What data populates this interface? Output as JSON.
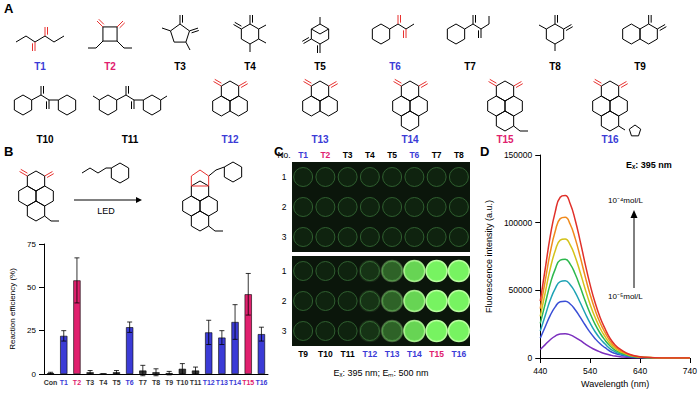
{
  "panel_labels": [
    "A",
    "B",
    "C",
    "D"
  ],
  "structures": [
    {
      "label": "T1",
      "color": "#3b3bd6"
    },
    {
      "label": "T2",
      "color": "#e0206e"
    },
    {
      "label": "T3",
      "color": "#000000"
    },
    {
      "label": "T4",
      "color": "#000000"
    },
    {
      "label": "T5",
      "color": "#000000"
    },
    {
      "label": "T6",
      "color": "#3b3bd6"
    },
    {
      "label": "T7",
      "color": "#000000"
    },
    {
      "label": "T8",
      "color": "#000000"
    },
    {
      "label": "T9",
      "color": "#000000"
    },
    {
      "label": "T10",
      "color": "#000000"
    },
    {
      "label": "T11",
      "color": "#000000"
    },
    {
      "label": "T12",
      "color": "#3b3bd6"
    },
    {
      "label": "T13",
      "color": "#3b3bd6"
    },
    {
      "label": "T14",
      "color": "#3b3bd6"
    },
    {
      "label": "T15",
      "color": "#e0206e"
    },
    {
      "label": "T16",
      "color": "#3b3bd6"
    }
  ],
  "scheme": {
    "arrow_label": "LED"
  },
  "chart_data": [
    {
      "type": "bar",
      "categories": [
        "Con",
        "T1",
        "T2",
        "T3",
        "T4",
        "T5",
        "T6",
        "T7",
        "T8",
        "T9",
        "T10",
        "T11",
        "T12",
        "T13",
        "T14",
        "T15",
        "T16"
      ],
      "values": [
        0.5,
        22,
        54,
        1,
        0,
        1,
        27,
        2,
        1,
        0.5,
        3,
        2,
        24,
        21,
        30,
        46,
        23
      ],
      "errors": [
        0.5,
        3,
        13,
        1,
        0,
        1,
        3,
        3,
        2,
        1,
        3,
        2,
        7,
        4,
        10,
        12,
        4
      ],
      "colors": [
        "#333333",
        "#3b3bd6",
        "#e0206e",
        "#333333",
        "#333333",
        "#333333",
        "#3b3bd6",
        "#333333",
        "#333333",
        "#333333",
        "#333333",
        "#333333",
        "#3b3bd6",
        "#3b3bd6",
        "#3b3bd6",
        "#e0206e",
        "#3b3bd6"
      ],
      "ylabel": "Reaction efficiency (%)",
      "ylim": [
        0,
        75
      ],
      "yticks": [
        0,
        25,
        50,
        75
      ],
      "grid": false
    },
    {
      "type": "line",
      "x": [
        440,
        450,
        460,
        470,
        480,
        490,
        500,
        510,
        520,
        530,
        540,
        550,
        560,
        570,
        580,
        590,
        600,
        620,
        640,
        660,
        700,
        740
      ],
      "series": [
        {
          "color": "#7b2fbe",
          "values": [
            6300,
            9900,
            13500,
            16200,
            17800,
            18000,
            17100,
            15300,
            13000,
            10400,
            8100,
            6100,
            4500,
            3200,
            2200,
            1400,
            1000,
            400,
            100,
            100,
            0,
            0
          ]
        },
        {
          "color": "#3a4fd6",
          "values": [
            14700,
            23100,
            31500,
            37800,
            41600,
            42000,
            39900,
            35700,
            30200,
            24400,
            18900,
            14300,
            10500,
            7600,
            5000,
            3400,
            2300,
            900,
            300,
            100,
            0,
            0
          ]
        },
        {
          "color": "#1fa3b5",
          "values": [
            20000,
            31400,
            42800,
            51300,
            56400,
            57000,
            54200,
            48500,
            41000,
            33100,
            25700,
            19400,
            14300,
            10300,
            6800,
            4600,
            3100,
            1300,
            500,
            200,
            0,
            0
          ]
        },
        {
          "color": "#2db84d",
          "values": [
            25600,
            40200,
            54800,
            65700,
            72300,
            73000,
            69400,
            62100,
            52600,
            42300,
            32900,
            24800,
            18300,
            13100,
            8800,
            5800,
            4000,
            1600,
            600,
            200,
            0,
            0
          ]
        },
        {
          "color": "#d4c21a",
          "values": [
            30800,
            48400,
            66000,
            79200,
            87100,
            88000,
            83600,
            74800,
            63400,
            51000,
            39600,
            29900,
            22000,
            15800,
            10600,
            7000,
            4800,
            1900,
            700,
            300,
            0,
            0
          ]
        },
        {
          "color": "#f08a1c",
          "values": [
            36400,
            57200,
            78000,
            93600,
            103000,
            104000,
            98800,
            88400,
            74900,
            60300,
            46800,
            35400,
            26000,
            18700,
            12500,
            8300,
            5700,
            2300,
            800,
            300,
            0,
            0
          ]
        },
        {
          "color": "#e0302a",
          "values": [
            42000,
            66000,
            90000,
            108000,
            118800,
            120000,
            114000,
            102000,
            86400,
            69600,
            54000,
            40800,
            30000,
            21600,
            14400,
            9600,
            6600,
            2600,
            1000,
            400,
            0,
            0
          ]
        }
      ],
      "xlabel": "Wavelength (nm)",
      "ylabel": "Fluorescence intensity (a.u.)",
      "xlim": [
        440,
        740
      ],
      "xticks": [
        440,
        540,
        640,
        740
      ],
      "ylim": [
        0,
        150000
      ],
      "yticks": [
        0,
        50000,
        100000,
        150000
      ],
      "grid": false,
      "annotations": [
        "Eₓ: 395 nm",
        "10⁻⁴mol/L",
        "10⁻⁵mol/L"
      ]
    }
  ],
  "plate": {
    "header": "No.",
    "columns_top": [
      "T1",
      "T2",
      "T3",
      "T4",
      "T5",
      "T6",
      "T7",
      "T8"
    ],
    "columns_bottom": [
      "T9",
      "T10",
      "T11",
      "T12",
      "T13",
      "T14",
      "T15",
      "T16"
    ],
    "rows": [
      "1",
      "2",
      "3"
    ],
    "glow": [
      0,
      0,
      0,
      0,
      0,
      0,
      0,
      0,
      0,
      0,
      0,
      0.08,
      0.3,
      0.85,
      1,
      1
    ],
    "caption": "Eₓ: 395 nm; Eₘ: 500 nm"
  }
}
